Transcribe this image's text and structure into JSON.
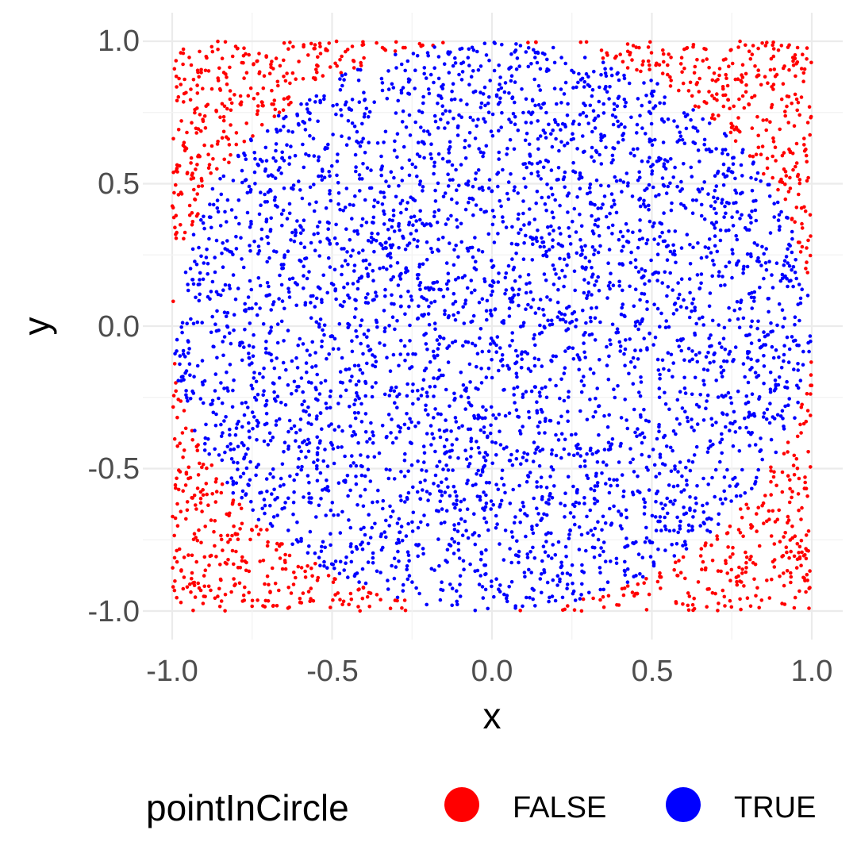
{
  "chart_data": {
    "type": "scatter",
    "title": "",
    "xlabel": "x",
    "ylabel": "y",
    "xlim": [
      -1.0,
      1.0
    ],
    "ylim": [
      -1.0,
      1.0
    ],
    "x_ticks": [
      "-1.0",
      "-0.5",
      "0.0",
      "0.5",
      "1.0"
    ],
    "y_ticks": [
      "-1.0",
      "-0.5",
      "0.0",
      "0.5",
      "1.0"
    ],
    "grid": true,
    "legend": {
      "title": "pointInCircle",
      "position": "bottom",
      "entries": [
        {
          "label": "FALSE",
          "color": "#FF0000"
        },
        {
          "label": "TRUE",
          "color": "#0000FF"
        }
      ]
    },
    "points": {
      "count": 5000,
      "distribution": "uniform on [-1,1] x [-1,1]",
      "classification": "TRUE if x^2 + y^2 <= 1 else FALSE"
    }
  }
}
